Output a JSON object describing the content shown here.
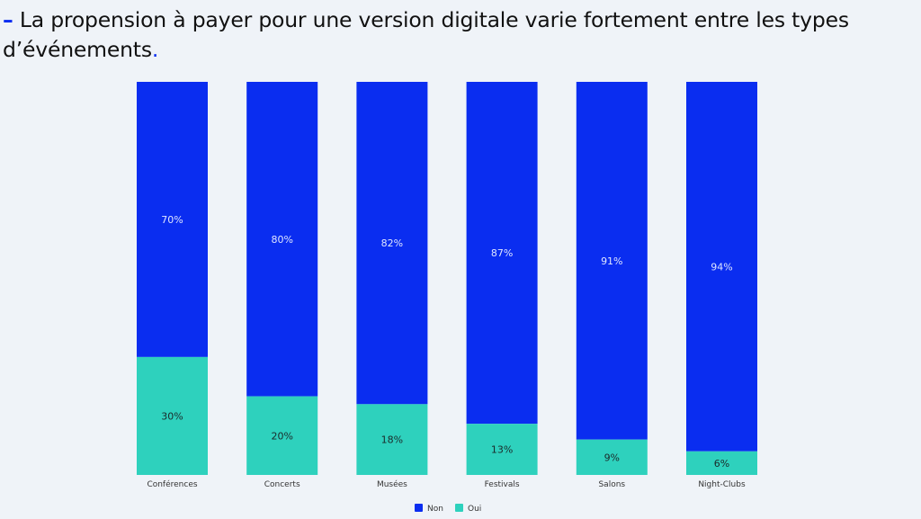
{
  "header": {
    "dash": "–",
    "title": "La propension à payer pour une version digitale varie fortement entre les types d’événements",
    "period": "."
  },
  "colors": {
    "non": "#0a2df0",
    "oui": "#2ed1bd",
    "background": "#eff3f8",
    "accent": "#0a2df0"
  },
  "chart_data": {
    "type": "bar",
    "stacked": true,
    "normalized": true,
    "title": "",
    "xlabel": "",
    "ylabel": "",
    "ylim": [
      0,
      100
    ],
    "grid": false,
    "legend": "bottom-center",
    "categories": [
      "Conférences",
      "Concerts",
      "Musées",
      "Festivals",
      "Salons",
      "Night-Clubs"
    ],
    "series": [
      {
        "name": "Oui",
        "values": [
          30,
          20,
          18,
          13,
          9,
          6
        ],
        "labels": [
          "30%",
          "20%",
          "18%",
          "13%",
          "9%",
          "6%"
        ]
      },
      {
        "name": "Non",
        "values": [
          70,
          80,
          82,
          87,
          91,
          94
        ],
        "labels": [
          "70%",
          "80%",
          "82%",
          "87%",
          "91%",
          "94%"
        ]
      }
    ]
  },
  "legend": {
    "items": [
      {
        "label": "Non",
        "series": "Non"
      },
      {
        "label": "Oui",
        "series": "Oui"
      }
    ]
  }
}
